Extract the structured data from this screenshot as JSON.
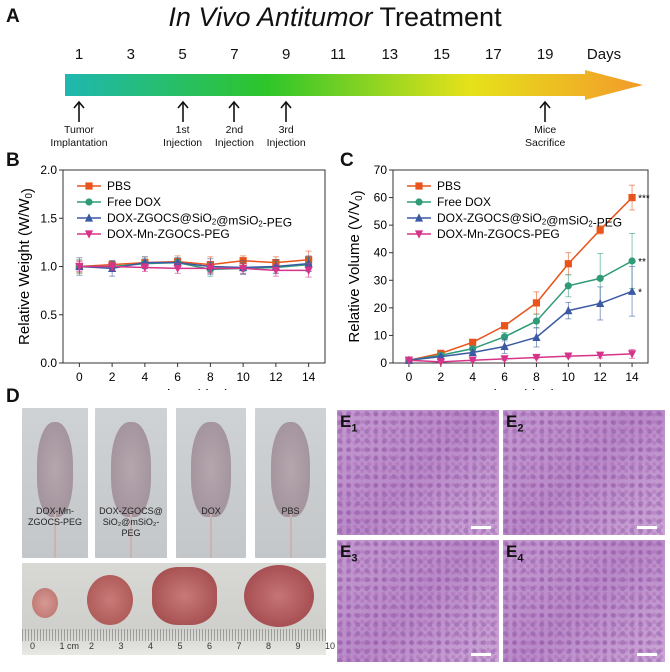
{
  "panel_a": {
    "label": "A",
    "title_italic": "In Vivo Antitumor",
    "title_rest": " Treatment",
    "days": [
      "1",
      "3",
      "5",
      "7",
      "9",
      "11",
      "13",
      "15",
      "17",
      "19"
    ],
    "days_unit": "Days",
    "events": [
      {
        "day": 1,
        "line1": "Tumor",
        "line2": "Implantation"
      },
      {
        "day": 5,
        "line1": "1st",
        "line2": "Injection"
      },
      {
        "day": 7,
        "line1": "2nd",
        "line2": "Injection"
      },
      {
        "day": 9,
        "line1": "3rd",
        "line2": "Injection"
      },
      {
        "day": 19,
        "line1": "Mice",
        "line2": "Sacrifice"
      }
    ],
    "gradient_colors": [
      "#1fb7b0",
      "#2ec52a",
      "#e6e21a",
      "#f39a2a"
    ]
  },
  "chart_data": [
    {
      "panel": "B",
      "type": "line",
      "xlabel": "Time (day)",
      "ylabel": "Relative Weight (W/W0)",
      "xlim": [
        -1,
        15
      ],
      "ylim": [
        0,
        2.0
      ],
      "xticks": [
        0,
        2,
        4,
        6,
        8,
        10,
        12,
        14
      ],
      "yticks": [
        "0.0",
        "0.5",
        "1.0",
        "1.5",
        "2.0"
      ],
      "legend_position": "top-left",
      "x": [
        0,
        2,
        4,
        6,
        8,
        10,
        12,
        14
      ],
      "series": [
        {
          "name": "PBS",
          "color": "#e8541b",
          "marker": "square",
          "values": [
            1.0,
            1.02,
            1.04,
            1.05,
            1.02,
            1.06,
            1.04,
            1.07
          ],
          "err": [
            0.06,
            0.04,
            0.06,
            0.06,
            0.08,
            0.05,
            0.06,
            0.09
          ]
        },
        {
          "name": "Free DOX",
          "color": "#2f9b78",
          "marker": "circle",
          "values": [
            1.0,
            1.0,
            1.03,
            1.04,
            0.97,
            0.98,
            0.99,
            1.02
          ],
          "err": [
            0.07,
            0.05,
            0.05,
            0.05,
            0.07,
            0.06,
            0.06,
            0.07
          ]
        },
        {
          "name": "DOX-ZGOCS@SiO2@mSiO2-PEG",
          "color": "#3b5aa3",
          "marker": "triangle-up",
          "values": [
            1.0,
            0.98,
            1.04,
            1.04,
            1.0,
            0.99,
            1.0,
            1.03
          ],
          "err": [
            0.09,
            0.08,
            0.06,
            0.05,
            0.08,
            0.07,
            0.07,
            0.08
          ]
        },
        {
          "name": "DOX-Mn-ZGOCS-PEG",
          "color": "#d6338a",
          "marker": "triangle-down",
          "values": [
            1.0,
            1.0,
            0.99,
            0.98,
            0.98,
            0.98,
            0.96,
            0.96
          ],
          "err": [
            0.05,
            0.04,
            0.04,
            0.05,
            0.05,
            0.05,
            0.06,
            0.07
          ]
        }
      ]
    },
    {
      "panel": "C",
      "type": "line",
      "xlabel": "Time (day)",
      "ylabel": "Relative Volume (V/V0)",
      "xlim": [
        -1,
        15
      ],
      "ylim": [
        0,
        70
      ],
      "xticks": [
        0,
        2,
        4,
        6,
        8,
        10,
        12,
        14
      ],
      "yticks": [
        "0",
        "10",
        "20",
        "30",
        "40",
        "50",
        "60",
        "70"
      ],
      "legend_position": "top-left",
      "x": [
        0,
        2,
        4,
        6,
        8,
        10,
        12,
        14
      ],
      "series": [
        {
          "name": "PBS",
          "color": "#e8541b",
          "marker": "square",
          "values": [
            1,
            3.5,
            7.5,
            13.5,
            21.8,
            36,
            48.3,
            60
          ],
          "err": [
            0.3,
            0.5,
            0.8,
            1.2,
            4,
            4,
            1.5,
            4.5
          ],
          "significance": "***"
        },
        {
          "name": "Free DOX",
          "color": "#2f9b78",
          "marker": "circle",
          "values": [
            1,
            2.8,
            5.2,
            9.5,
            15.2,
            28,
            30.7,
            37
          ],
          "err": [
            0.3,
            0.5,
            0.8,
            1.5,
            2.5,
            4,
            9,
            10
          ],
          "significance": "**"
        },
        {
          "name": "DOX-ZGOCS@SiO2@mSiO2-PEG",
          "color": "#3b5aa3",
          "marker": "triangle-up",
          "values": [
            1,
            2.3,
            3.8,
            6,
            9.3,
            19,
            21.6,
            26
          ],
          "err": [
            0.3,
            0.4,
            0.6,
            2.5,
            3.5,
            3,
            6,
            9
          ],
          "significance": "*"
        },
        {
          "name": "DOX-Mn-ZGOCS-PEG",
          "color": "#d6338a",
          "marker": "triangle-down",
          "values": [
            1,
            0.4,
            1,
            1.5,
            2,
            2.5,
            2.8,
            3.3
          ],
          "err": [
            0.3,
            0.3,
            0.4,
            0.5,
            0.5,
            0.6,
            1,
            1.6
          ]
        }
      ]
    }
  ],
  "panel_d": {
    "label": "D",
    "mice": [
      "DOX-Mn-\nZGOCS-PEG",
      "DOX-ZGOCS@\nSiO2@mSiO2-PEG",
      "DOX",
      "PBS"
    ],
    "ruler_labels": [
      "0",
      "1 cm",
      "2",
      "3",
      "4",
      "5",
      "6",
      "7",
      "8",
      "9",
      "10"
    ]
  },
  "panel_e": {
    "labels": [
      {
        "main": "E",
        "sub": "1"
      },
      {
        "main": "E",
        "sub": "2"
      },
      {
        "main": "E",
        "sub": "3"
      },
      {
        "main": "E",
        "sub": "4"
      }
    ]
  }
}
